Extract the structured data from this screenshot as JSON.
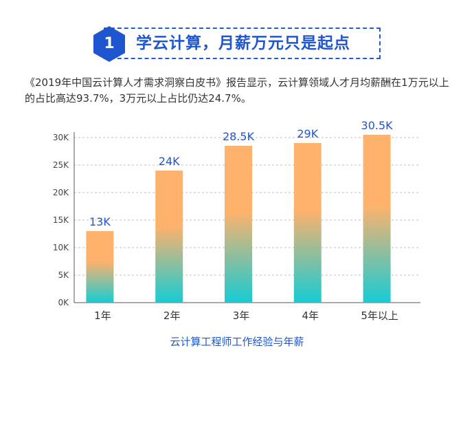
{
  "header": {
    "badge_number": "1",
    "title": "学云计算，月薪万元只是起点"
  },
  "intro": {
    "text": "《2019年中国云计算人才需求洞察白皮书》报告显示，云计算领域人才月均薪酬在1万元以上的占比高达93.7%，3万元以上占比仍达24.7%。"
  },
  "colors": {
    "accent": "#1e56cf",
    "bar_top": "#ffb26b",
    "bar_bottom": "#16ccd4",
    "grid": "#bfbfbf",
    "axis_text": "#444444"
  },
  "chart_data": {
    "type": "bar",
    "categories": [
      "1年",
      "2年",
      "3年",
      "4年",
      "5年以上"
    ],
    "values": [
      13000,
      24000,
      28500,
      29000,
      30500
    ],
    "data_labels": [
      "13K",
      "24K",
      "28.5K",
      "29K",
      "30.5K"
    ],
    "title": "",
    "xlabel": "云计算工程师工作经验与年薪",
    "ylabel": "",
    "ylim": [
      0,
      30000
    ],
    "yticks": [
      0,
      5000,
      10000,
      15000,
      20000,
      25000,
      30000
    ],
    "ytick_labels": [
      "0K",
      "5K",
      "10K",
      "15K",
      "20K",
      "25K",
      "30K"
    ],
    "grid": true,
    "grid_style": "dashed"
  }
}
